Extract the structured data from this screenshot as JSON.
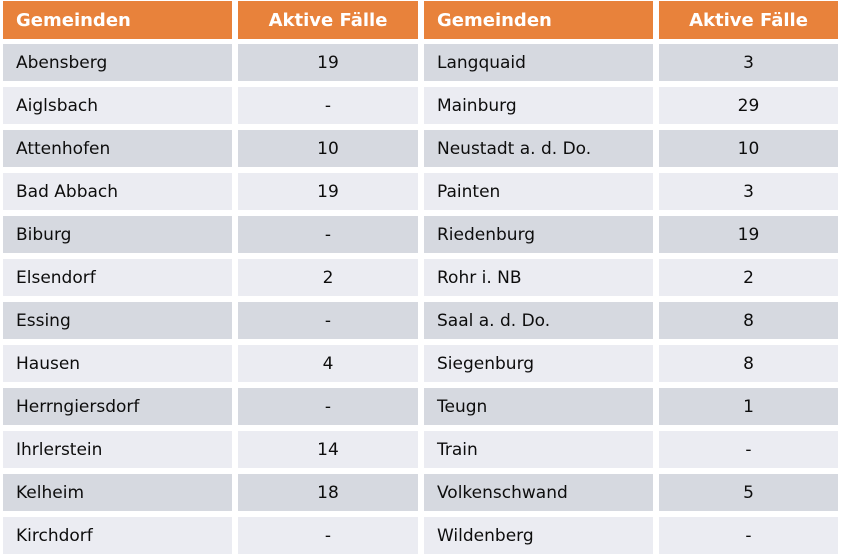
{
  "header": {
    "gemeinden": "Gemeinden",
    "aktive_faelle": "Aktive Fälle"
  },
  "colors": {
    "header_bg": "#e8823b",
    "header_text": "#ffffff",
    "row_dark": "#d6d9e0",
    "row_light": "#ebecf2",
    "body_text": "#0d0d0d",
    "gutter": "#ffffff"
  },
  "rows": [
    {
      "left": {
        "name": "Abensberg",
        "value": "19"
      },
      "right": {
        "name": "Langquaid",
        "value": "3"
      }
    },
    {
      "left": {
        "name": "Aiglsbach",
        "value": "-"
      },
      "right": {
        "name": "Mainburg",
        "value": "29"
      }
    },
    {
      "left": {
        "name": "Attenhofen",
        "value": "10"
      },
      "right": {
        "name": "Neustadt a. d. Do.",
        "value": "10"
      }
    },
    {
      "left": {
        "name": "Bad Abbach",
        "value": "19"
      },
      "right": {
        "name": "Painten",
        "value": "3"
      }
    },
    {
      "left": {
        "name": "Biburg",
        "value": "-"
      },
      "right": {
        "name": "Riedenburg",
        "value": "19"
      }
    },
    {
      "left": {
        "name": "Elsendorf",
        "value": "2"
      },
      "right": {
        "name": "Rohr i. NB",
        "value": "2"
      }
    },
    {
      "left": {
        "name": "Essing",
        "value": "-"
      },
      "right": {
        "name": "Saal a. d. Do.",
        "value": "8"
      }
    },
    {
      "left": {
        "name": "Hausen",
        "value": "4"
      },
      "right": {
        "name": "Siegenburg",
        "value": "8"
      }
    },
    {
      "left": {
        "name": "Herrngiersdorf",
        "value": "-"
      },
      "right": {
        "name": "Teugn",
        "value": "1"
      }
    },
    {
      "left": {
        "name": "Ihrlerstein",
        "value": "14"
      },
      "right": {
        "name": "Train",
        "value": "-"
      }
    },
    {
      "left": {
        "name": "Kelheim",
        "value": "18"
      },
      "right": {
        "name": "Volkenschwand",
        "value": "5"
      }
    },
    {
      "left": {
        "name": "Kirchdorf",
        "value": "-"
      },
      "right": {
        "name": "Wildenberg",
        "value": "-"
      }
    }
  ],
  "chart_data": {
    "type": "table",
    "columns": [
      "Gemeinden",
      "Aktive Fälle",
      "Gemeinden",
      "Aktive Fälle"
    ],
    "cells": [
      [
        "Abensberg",
        "19",
        "Langquaid",
        "3"
      ],
      [
        "Aiglsbach",
        "-",
        "Mainburg",
        "29"
      ],
      [
        "Attenhofen",
        "10",
        "Neustadt a. d. Do.",
        "10"
      ],
      [
        "Bad Abbach",
        "19",
        "Painten",
        "3"
      ],
      [
        "Biburg",
        "-",
        "Riedenburg",
        "19"
      ],
      [
        "Elsendorf",
        "2",
        "Rohr i. NB",
        "2"
      ],
      [
        "Essing",
        "-",
        "Saal a. d. Do.",
        "8"
      ],
      [
        "Hausen",
        "4",
        "Siegenburg",
        "8"
      ],
      [
        "Herrngiersdorf",
        "-",
        "Teugn",
        "1"
      ],
      [
        "Ihrlerstein",
        "14",
        "Train",
        "-"
      ],
      [
        "Kelheim",
        "18",
        "Volkenschwand",
        "5"
      ],
      [
        "Kirchdorf",
        "-",
        "Wildenberg",
        "-"
      ]
    ]
  }
}
